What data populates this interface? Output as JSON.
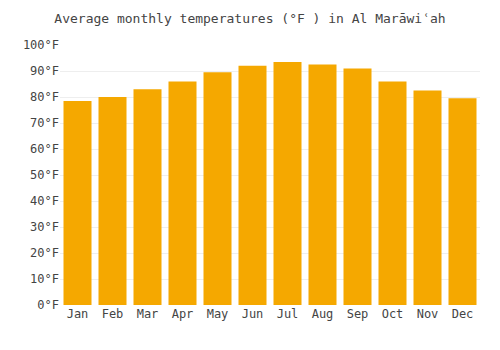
{
  "chart_data": {
    "type": "bar",
    "title": "Average monthly temperatures (°F ) in Al Marāwiʿah",
    "categories": [
      "Jan",
      "Feb",
      "Mar",
      "Apr",
      "May",
      "Jun",
      "Jul",
      "Aug",
      "Sep",
      "Oct",
      "Nov",
      "Dec"
    ],
    "values": [
      78.5,
      80.0,
      83.0,
      86.0,
      89.5,
      92.0,
      93.5,
      92.5,
      91.0,
      86.0,
      82.5,
      79.5
    ],
    "color": "#F5A800",
    "ylim": [
      0,
      100
    ],
    "yticks": [
      {
        "value": 0,
        "label": "0°F"
      },
      {
        "value": 10,
        "label": "10°F"
      },
      {
        "value": 20,
        "label": "20°F"
      },
      {
        "value": 30,
        "label": "30°F"
      },
      {
        "value": 40,
        "label": "40°F"
      },
      {
        "value": 50,
        "label": "50°F"
      },
      {
        "value": 60,
        "label": "60°F"
      },
      {
        "value": 70,
        "label": "70°F"
      },
      {
        "value": 80,
        "label": "80°F"
      },
      {
        "value": 90,
        "label": "90°F"
      },
      {
        "value": 100,
        "label": "100°F"
      }
    ],
    "grid": true
  }
}
